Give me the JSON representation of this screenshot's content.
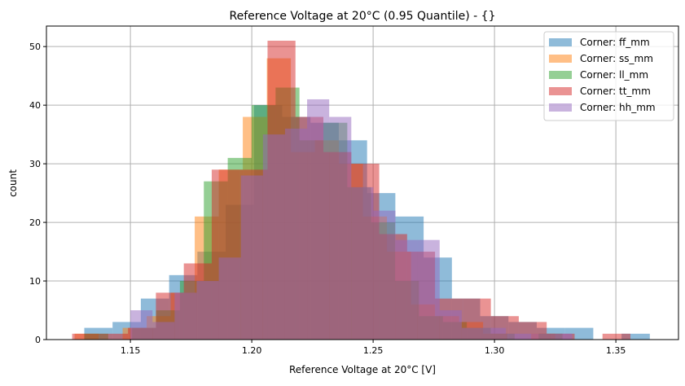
{
  "chart_data": {
    "type": "histogram",
    "title": "Reference Voltage at 20°C (0.95 Quantile) - {}",
    "xlabel": "Reference Voltage at 20°C [V]",
    "ylabel": "count",
    "xlim": [
      1.1154,
      1.3758
    ],
    "ylim": [
      0,
      53.5
    ],
    "xticks": [
      "1.15",
      "1.20",
      "1.25",
      "1.30",
      "1.35"
    ],
    "yticks": [
      "0",
      "10",
      "20",
      "30",
      "40",
      "50"
    ],
    "grid": true,
    "legend_position": "top-right",
    "alpha": 0.5,
    "series": [
      {
        "name": "Corner: ff_mm",
        "color": "#1f77b4",
        "range": [
          1.131,
          1.364
        ],
        "counts": [
          2,
          3,
          7,
          11,
          15,
          23,
          40,
          38,
          37,
          34,
          25,
          21,
          14,
          7,
          4,
          3,
          2,
          2,
          0,
          1
        ]
      },
      {
        "name": "Corner: ss_mm",
        "color": "#ff7f0e",
        "range": [
          1.127,
          1.325
        ],
        "counts": [
          1,
          0,
          2,
          4,
          8,
          21,
          29,
          38,
          48,
          32,
          34,
          30,
          21,
          15,
          6,
          4,
          3,
          1,
          0,
          1
        ]
      },
      {
        "name": "Corner: ll_mm",
        "color": "#2ca02c",
        "range": [
          1.131,
          1.328
        ],
        "counts": [
          1,
          0,
          2,
          5,
          10,
          27,
          31,
          40,
          43,
          34,
          37,
          26,
          20,
          10,
          4,
          3,
          2,
          1,
          0,
          1
        ]
      },
      {
        "name": "Corner: tt_mm",
        "color": "#d62728",
        "range": [
          1.126,
          1.356
        ],
        "counts": [
          1,
          1,
          2,
          8,
          13,
          29,
          29,
          51,
          38,
          32,
          30,
          18,
          15,
          7,
          7,
          4,
          3,
          1,
          0,
          1
        ]
      },
      {
        "name": "Corner: hh_mm",
        "color": "#9467bd",
        "range": [
          1.15,
          1.332
        ],
        "counts": [
          5,
          3,
          8,
          10,
          14,
          28,
          35,
          36,
          41,
          38,
          26,
          22,
          17,
          17,
          5,
          2,
          2,
          1,
          1,
          1
        ]
      }
    ]
  }
}
